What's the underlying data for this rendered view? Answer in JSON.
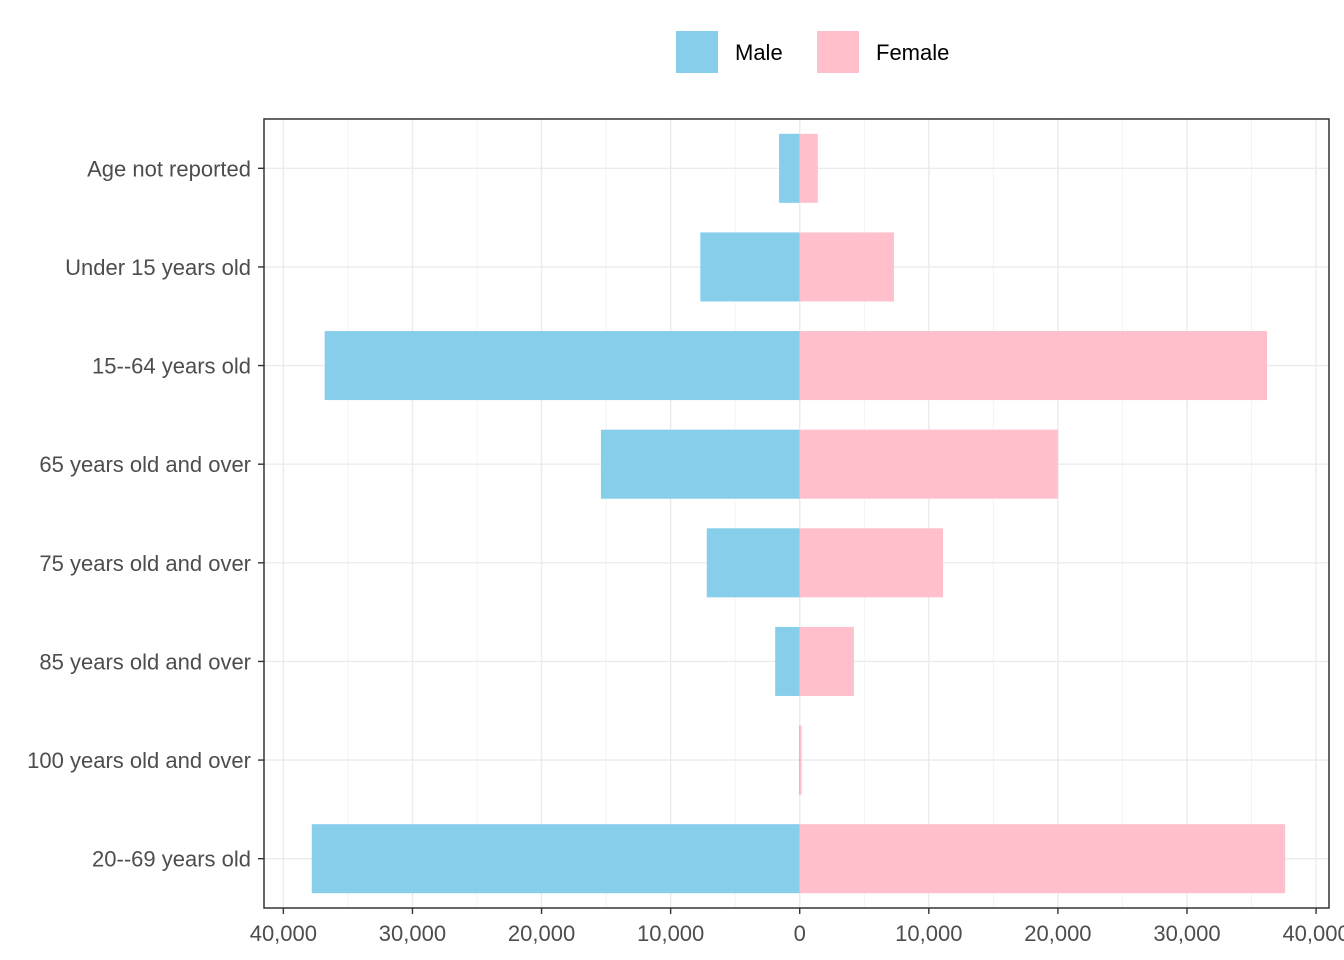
{
  "chart_data": {
    "type": "bar",
    "orientation": "horizontal-diverging",
    "categories": [
      "Age not reported",
      "Under 15 years old",
      "15--64 years old",
      "65 years old and over",
      "75 years old and over",
      "85 years old and over",
      "100 years old and over",
      "20--69 years old"
    ],
    "series": [
      {
        "name": "Male",
        "color": "#87CEEB",
        "values": [
          -1600,
          -7700,
          -36800,
          -15400,
          -7200,
          -1900,
          -60,
          -37800
        ]
      },
      {
        "name": "Female",
        "color": "#FFC0CB",
        "values": [
          1400,
          7300,
          36200,
          20000,
          11100,
          4200,
          150,
          37600
        ]
      }
    ],
    "xlim": [
      -41500,
      41000
    ],
    "x_ticks": [
      -40000,
      -30000,
      -20000,
      -10000,
      0,
      10000,
      20000,
      30000,
      40000
    ],
    "x_tick_labels": [
      "40,000",
      "30,000",
      "20,000",
      "10,000",
      "0",
      "10,000",
      "20,000",
      "30,000",
      "40,000"
    ],
    "grid": true,
    "legend_position": "top",
    "title": "",
    "xlabel": "",
    "ylabel": ""
  }
}
